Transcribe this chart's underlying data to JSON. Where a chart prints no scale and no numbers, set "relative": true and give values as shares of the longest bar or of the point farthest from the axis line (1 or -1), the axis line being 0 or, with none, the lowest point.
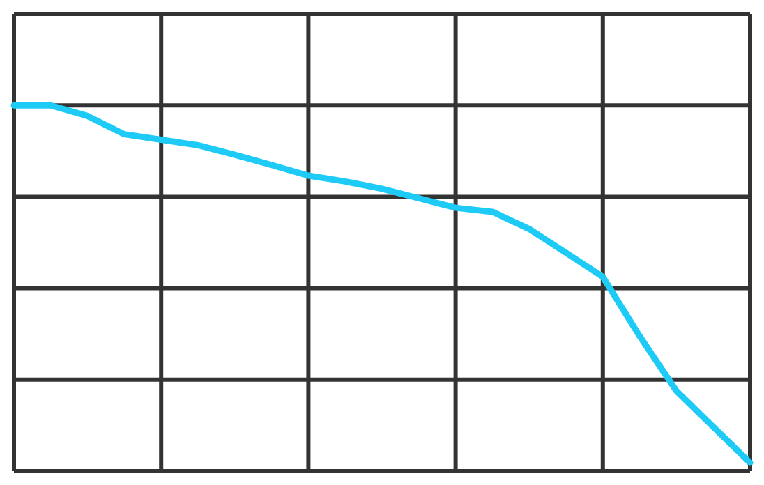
{
  "chart_data": {
    "type": "line",
    "relative": true,
    "grid": true,
    "marker": "none",
    "line_style": "solid",
    "categories": [
      null,
      null,
      null,
      null,
      null,
      null,
      null,
      null,
      null,
      null,
      null,
      null,
      null,
      null,
      null,
      null,
      null,
      null,
      null,
      null,
      null
    ],
    "series": [
      {
        "color": "#1ecbf7",
        "values": [
          1,
          1,
          0.971,
          0.921,
          0.906,
          0.891,
          0.865,
          0.837,
          0.808,
          0.792,
          0.772,
          0.746,
          0.72,
          0.709,
          0.662,
          0.597,
          0.531,
          0.369,
          0.219,
          0.121,
          0.023
        ]
      }
    ]
  }
}
